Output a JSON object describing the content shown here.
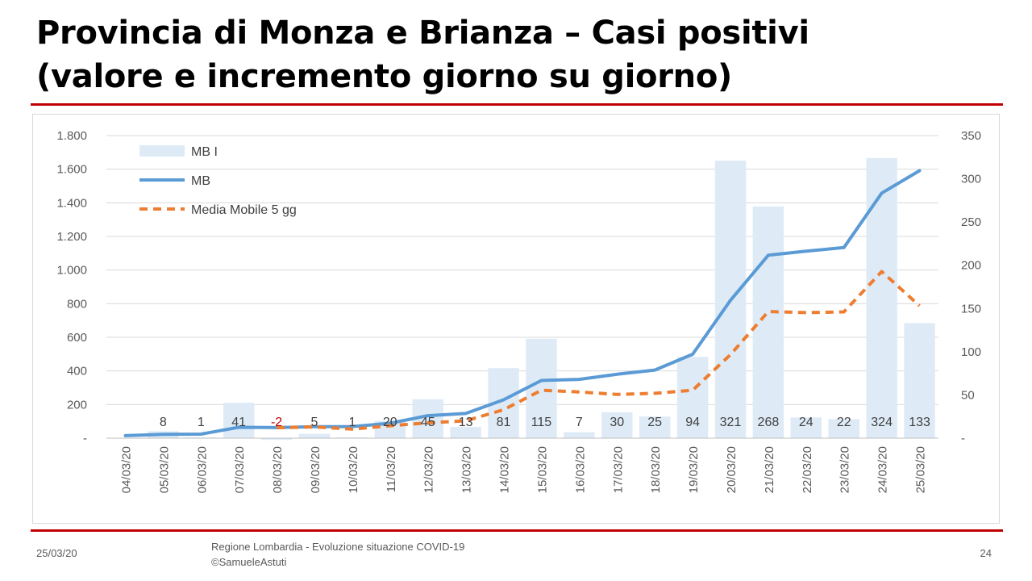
{
  "slide": {
    "title_line1": "Provincia di Monza e Brianza – Casi positivi",
    "title_line2": "(valore e incremento giorno su giorno)",
    "footer_date": "25/03/20",
    "footer_source_line1": "Regione Lombardia - Evoluzione situazione COVID-19",
    "footer_source_line2": "©SamueleAstuti",
    "page_number": "24"
  },
  "chart_data": {
    "type": "bar",
    "categories": [
      "04/03/20",
      "05/03/20",
      "06/03/20",
      "07/03/20",
      "08/03/20",
      "09/03/20",
      "10/03/20",
      "11/03/20",
      "12/03/20",
      "13/03/20",
      "14/03/20",
      "15/03/20",
      "16/03/20",
      "17/03/20",
      "18/03/20",
      "19/03/20",
      "20/03/20",
      "21/03/20",
      "22/03/20",
      "23/03/20",
      "24/03/20",
      "25/03/20"
    ],
    "series": [
      {
        "name": "MB I",
        "kind": "bar",
        "axis": "right",
        "color": "#deebf7",
        "values": [
          0,
          8,
          1,
          41,
          -2,
          5,
          1,
          20,
          45,
          13,
          81,
          115,
          7,
          30,
          25,
          94,
          321,
          268,
          24,
          22,
          324,
          133
        ],
        "labels": [
          "",
          "8",
          "1",
          "41",
          "-2",
          "5",
          "1",
          "20",
          "45",
          "13",
          "81",
          "115",
          "7",
          "30",
          "25",
          "94",
          "321",
          "268",
          "24",
          "22",
          "324",
          "133"
        ]
      },
      {
        "name": "MB",
        "kind": "line",
        "axis": "left",
        "color": "#5b9bd5",
        "values": [
          15,
          23,
          24,
          65,
          63,
          68,
          69,
          89,
          134,
          147,
          228,
          343,
          350,
          380,
          405,
          499,
          820,
          1088,
          1112,
          1134,
          1458,
          1591
        ]
      },
      {
        "name": "Media Mobile 5 gg",
        "kind": "line",
        "axis": "left",
        "color": "#ed7d31",
        "dashed": true,
        "start_index": 4,
        "values": [
          null,
          null,
          null,
          null,
          62,
          67,
          54,
          74,
          91,
          103,
          169,
          285,
          275,
          260,
          267,
          285,
          497,
          753,
          747,
          751,
          991,
          787
        ]
      }
    ],
    "y_left": {
      "lim": [
        0,
        1800
      ],
      "ticks": [
        0,
        200,
        400,
        600,
        800,
        1000,
        1200,
        1400,
        1600,
        1800
      ],
      "tick_labels": [
        "-",
        "200",
        "400",
        "600",
        "800",
        "1.000",
        "1.200",
        "1.400",
        "1.600",
        "1.800"
      ]
    },
    "y_right": {
      "lim": [
        0,
        350
      ],
      "ticks": [
        0,
        50,
        100,
        150,
        200,
        250,
        300,
        350
      ],
      "tick_labels": [
        "-",
        "50",
        "100",
        "150",
        "200",
        "250",
        "300",
        "350"
      ]
    },
    "title": "",
    "xlabel": "",
    "ylabel": "",
    "grid": true,
    "legend_position": "top-left",
    "legend": [
      "MB I",
      "MB",
      "Media Mobile 5 gg"
    ]
  }
}
